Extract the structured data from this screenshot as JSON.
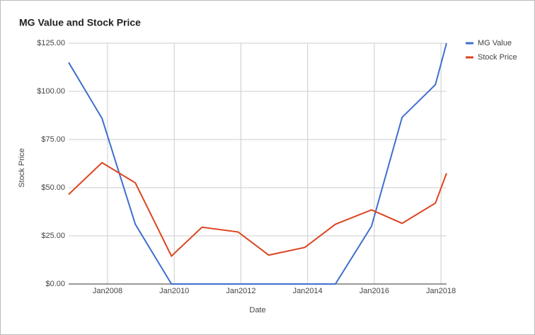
{
  "chart_data": {
    "type": "line",
    "title": "MG Value and Stock Price",
    "x_label": "Date",
    "y_label": "Stock Price",
    "x": [
      "2006-11",
      "2007-11",
      "2008-11",
      "2009-12",
      "2010-11",
      "2011-12",
      "2012-11",
      "2013-12",
      "2014-11",
      "2015-12",
      "2016-11",
      "2017-11",
      "2018-03"
    ],
    "series": [
      {
        "name": "MG Value",
        "color": "#3f6fcc",
        "values": [
          115,
          86,
          31,
          0,
          0,
          0,
          0,
          0,
          0,
          30,
          86.5,
          103.5,
          125
        ]
      },
      {
        "name": "Stock Price",
        "color": "#dc4520",
        "values": [
          46.5,
          63,
          52.5,
          14.5,
          29.5,
          27,
          15,
          19,
          31,
          38.5,
          31.5,
          42,
          57.5
        ]
      }
    ],
    "xlim": [
      "2006-11",
      "2018-03"
    ],
    "xticks": [
      {
        "value": "2008-01",
        "label": "Jan2008"
      },
      {
        "value": "2010-01",
        "label": "Jan2010"
      },
      {
        "value": "2012-01",
        "label": "Jan2012"
      },
      {
        "value": "2014-01",
        "label": "Jan2014"
      },
      {
        "value": "2016-01",
        "label": "Jan2016"
      },
      {
        "value": "2018-01",
        "label": "Jan2018"
      }
    ],
    "ylim": [
      0,
      125
    ],
    "yticks": [
      {
        "value": 0,
        "label": "$0.00"
      },
      {
        "value": 25,
        "label": "$25.00"
      },
      {
        "value": 50,
        "label": "$50.00"
      },
      {
        "value": 75,
        "label": "$75.00"
      },
      {
        "value": 100,
        "label": "$100.00"
      },
      {
        "value": 125,
        "label": "$125.00"
      }
    ],
    "grid": true,
    "legend": "right"
  }
}
